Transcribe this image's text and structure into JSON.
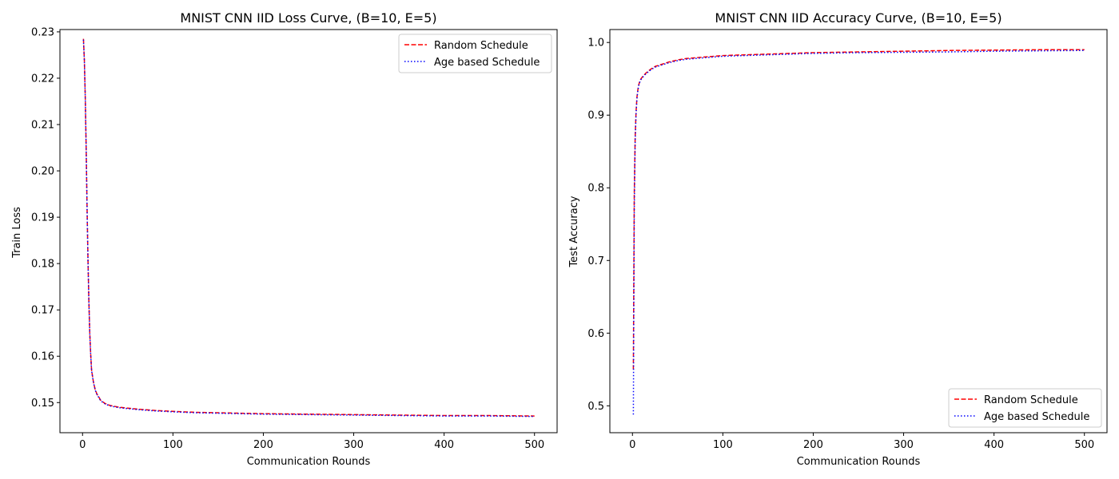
{
  "chart_data": [
    {
      "type": "line",
      "title": "MNIST CNN IID Loss Curve, (B=10, E=5)",
      "xlabel": "Communication Rounds",
      "ylabel": "Train Loss",
      "xlim": [
        -25,
        525
      ],
      "ylim": [
        0.1435,
        0.2305
      ],
      "xticks": [
        0,
        100,
        200,
        300,
        400,
        500
      ],
      "yticks": [
        0.15,
        0.16,
        0.17,
        0.18,
        0.19,
        0.2,
        0.21,
        0.22,
        0.23
      ],
      "ytick_labels": [
        "0.15",
        "0.16",
        "0.17",
        "0.18",
        "0.19",
        "0.20",
        "0.21",
        "0.22",
        "0.23"
      ],
      "legend_position": "top-right",
      "series": [
        {
          "name": "Random Schedule",
          "color": "#ff0000",
          "style": "dashed",
          "x": [
            1,
            2,
            3,
            4,
            5,
            6,
            7,
            8,
            9,
            10,
            12,
            14,
            16,
            18,
            20,
            25,
            30,
            40,
            50,
            60,
            80,
            100,
            125,
            150,
            200,
            250,
            300,
            350,
            400,
            450,
            500
          ],
          "y": [
            0.2285,
            0.224,
            0.216,
            0.205,
            0.192,
            0.181,
            0.172,
            0.165,
            0.1605,
            0.157,
            0.1545,
            0.1528,
            0.1518,
            0.1512,
            0.1505,
            0.1498,
            0.1494,
            0.149,
            0.1488,
            0.1486,
            0.1483,
            0.1481,
            0.1479,
            0.1478,
            0.1476,
            0.1475,
            0.1474,
            0.1473,
            0.1472,
            0.1472,
            0.1471
          ]
        },
        {
          "name": "Age based Schedule",
          "color": "#0000ff",
          "style": "dotted",
          "x": [
            1,
            2,
            3,
            4,
            5,
            6,
            7,
            8,
            9,
            10,
            12,
            14,
            16,
            18,
            20,
            25,
            30,
            40,
            50,
            60,
            80,
            100,
            125,
            150,
            200,
            250,
            300,
            350,
            400,
            450,
            500
          ],
          "y": [
            0.2283,
            0.2238,
            0.2158,
            0.2048,
            0.1918,
            0.1808,
            0.1718,
            0.1649,
            0.1604,
            0.1569,
            0.1544,
            0.1527,
            0.1517,
            0.1511,
            0.1504,
            0.1497,
            0.1493,
            0.1489,
            0.1487,
            0.1485,
            0.1482,
            0.148,
            0.1478,
            0.1477,
            0.1475,
            0.1474,
            0.1473,
            0.1472,
            0.1471,
            0.1471,
            0.147
          ]
        }
      ]
    },
    {
      "type": "line",
      "title": "MNIST CNN IID Accuracy Curve, (B=10, E=5)",
      "xlabel": "Communication Rounds",
      "ylabel": "Test Accuracy",
      "xlim": [
        -25,
        525
      ],
      "ylim": [
        0.463,
        1.0178
      ],
      "xticks": [
        0,
        100,
        200,
        300,
        400,
        500
      ],
      "yticks": [
        0.5,
        0.6,
        0.7,
        0.8,
        0.9,
        1.0
      ],
      "ytick_labels": [
        "0.5",
        "0.6",
        "0.7",
        "0.8",
        "0.9",
        "1.0"
      ],
      "legend_position": "bottom-right",
      "series": [
        {
          "name": "Random Schedule",
          "color": "#ff0000",
          "style": "dashed",
          "x": [
            1,
            2,
            3,
            4,
            5,
            6,
            7,
            8,
            9,
            10,
            12,
            15,
            20,
            25,
            30,
            40,
            50,
            60,
            80,
            100,
            150,
            200,
            250,
            300,
            350,
            400,
            450,
            500
          ],
          "y": [
            0.55,
            0.79,
            0.87,
            0.905,
            0.925,
            0.935,
            0.942,
            0.946,
            0.949,
            0.951,
            0.954,
            0.958,
            0.963,
            0.967,
            0.969,
            0.973,
            0.976,
            0.978,
            0.98,
            0.982,
            0.984,
            0.986,
            0.987,
            0.988,
            0.989,
            0.9895,
            0.99,
            0.99
          ]
        },
        {
          "name": "Age based Schedule",
          "color": "#0000ff",
          "style": "dotted",
          "x": [
            1,
            2,
            3,
            4,
            5,
            6,
            7,
            8,
            9,
            10,
            12,
            15,
            20,
            25,
            30,
            40,
            50,
            60,
            80,
            100,
            150,
            200,
            250,
            300,
            350,
            400,
            450,
            500
          ],
          "y": [
            0.488,
            0.77,
            0.865,
            0.902,
            0.923,
            0.934,
            0.941,
            0.945,
            0.948,
            0.95,
            0.953,
            0.957,
            0.962,
            0.966,
            0.968,
            0.972,
            0.975,
            0.977,
            0.979,
            0.981,
            0.983,
            0.985,
            0.986,
            0.9865,
            0.987,
            0.988,
            0.9885,
            0.989
          ]
        }
      ]
    }
  ]
}
